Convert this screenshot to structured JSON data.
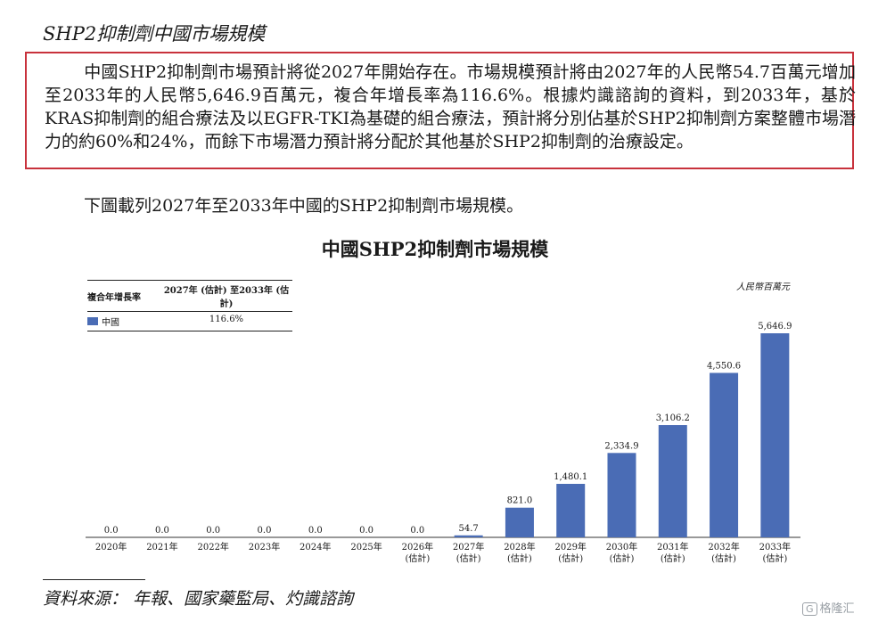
{
  "section_title": "SHP2抑制劑中國市場規模",
  "paragraph": "中國SHP2抑制劑市場預計將從2027年開始存在。市場規模預計將由2027年的人民幣54.7百萬元增加至2033年的人民幣5,646.9百萬元，複合年增長率為116.6%。根據灼識諮詢的資料，到2033年，基於KRAS抑制劑的組合療法及以EGFR-TKI為基礎的組合療法，預計將分別佔基於SHP2抑制劑方案整體市場潛力的約60%和24%，而餘下市場潛力預計將分配於其他基於SHP2抑制劑的治療設定。",
  "intro": "下圖載列2027年至2033年中國的SHP2抑制劑市場規模。",
  "cagr_table": {
    "header_col1": "複合年增長率",
    "header_col2": "2027年 (估計) 至2033年 (估計)",
    "row_label": "中國",
    "row_value": "116.6%"
  },
  "source": "資料來源： 年報、國家藥監局、灼識諮詢",
  "watermark": {
    "glyph": "G",
    "text": "格隆汇"
  },
  "chart_data": {
    "type": "bar",
    "title": "中國SHP2抑制劑市場規模",
    "unit": "人民幣百萬元",
    "categories": [
      "2020年",
      "2021年",
      "2022年",
      "2023年",
      "2024年",
      "2025年",
      "2026年\n(估計)",
      "2027年\n(估計)",
      "2028年\n(估計)",
      "2029年\n(估計)",
      "2030年\n(估計)",
      "2031年\n(估計)",
      "2032年\n(估計)",
      "2033年\n(估計)"
    ],
    "series": [
      {
        "values": [
          0,
          0,
          0,
          0,
          0,
          0,
          0,
          54.7,
          821.0,
          1480.1,
          2334.9,
          3106.2,
          4550.6,
          5646.9
        ]
      }
    ],
    "value_labels": [
      "0.0",
      "0.0",
      "0.0",
      "0.0",
      "0.0",
      "0.0",
      "0.0",
      "54.7",
      "821.0",
      "1,480.1",
      "2,334.9",
      "3,106.2",
      "4,550.6",
      "5,646.9"
    ],
    "ylim": [
      0,
      5646.9
    ],
    "bar_color": "#4a6cb5",
    "grid": false,
    "legend": "top-left"
  }
}
